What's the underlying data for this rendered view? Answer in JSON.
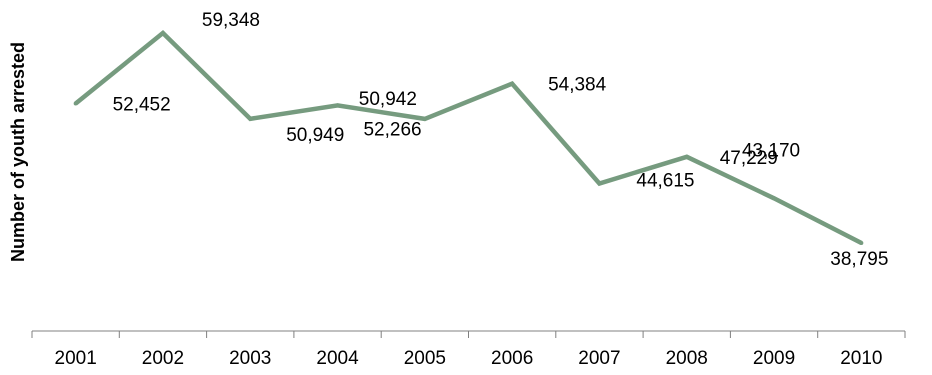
{
  "chart_data": {
    "type": "line",
    "title": "",
    "xlabel": "",
    "ylabel": "Number of youth arrested",
    "categories": [
      "2001",
      "2002",
      "2003",
      "2004",
      "2005",
      "2006",
      "2007",
      "2008",
      "2009",
      "2010"
    ],
    "series": [
      {
        "values": [
          52452,
          59348,
          50949,
          52266,
          50942,
          54384,
          44615,
          47229,
          43170,
          38795
        ],
        "data_labels": [
          "52,452",
          "59,348",
          "50,949",
          "52,266",
          "50,942",
          "54,384",
          "44,615",
          "47,229",
          "43,170",
          "38,795"
        ],
        "color": "#769B7F"
      }
    ],
    "ylim": [
      30000,
      62000
    ],
    "y_axis_visible": false,
    "grid": false,
    "legend": "none",
    "axis_color": "#808080"
  }
}
